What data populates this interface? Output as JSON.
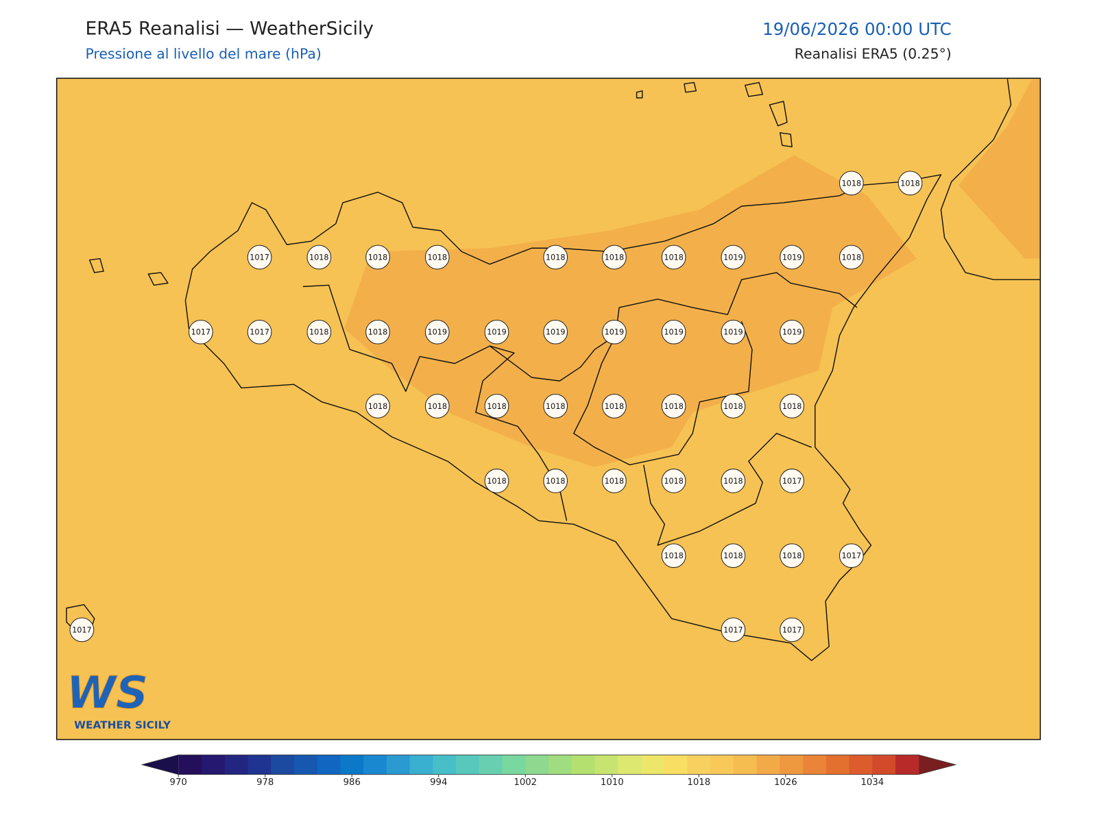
{
  "header": {
    "title": "ERA5 Reanalisi — WeatherSicily",
    "subtitle": "Pressione al livello del mare (hPa)",
    "datetime": "19/06/2026 00:00 UTC",
    "source": "Reanalisi ERA5 (0.25°)"
  },
  "points": [
    1018,
    1018,
    1017,
    1018,
    1018,
    1018,
    1018,
    1018,
    1018,
    1019,
    1019,
    1018,
    1017,
    1017,
    1018,
    1018,
    1019,
    1019,
    1019,
    1019,
    1019,
    1019,
    1019,
    1018,
    1018,
    1018,
    1018,
    1018,
    1018,
    1018,
    1018,
    1018,
    1018,
    1018,
    1018,
    1018,
    1017,
    1018,
    1018,
    1018,
    1017,
    1017,
    1017,
    1017
  ],
  "colorbar": {
    "ticks": [
      970,
      978,
      986,
      994,
      1002,
      1010,
      1018,
      1026,
      1034
    ],
    "colors": [
      "#24105a",
      "#251870",
      "#232680",
      "#1f3390",
      "#1c4aa0",
      "#1658b0",
      "#1066c0",
      "#0c78c8",
      "#1a88d0",
      "#2a9ad0",
      "#39b0d0",
      "#48bfc8",
      "#58c8bc",
      "#68d0b0",
      "#78d8a0",
      "#8ed890",
      "#a0dc80",
      "#b4e070",
      "#c8e470",
      "#dce870",
      "#ece66a",
      "#f8de62",
      "#f7d060",
      "#f8c858",
      "#f5bc50",
      "#f2aa48",
      "#ee9840",
      "#ea8438",
      "#e47030",
      "#dc5c2c",
      "#d24a2a",
      "#b82a2a"
    ],
    "under_color": "#1a0f4a",
    "over_color": "#7a1f1f"
  },
  "logo": {
    "mark": "WS",
    "text": "WEATHER SICILY"
  }
}
